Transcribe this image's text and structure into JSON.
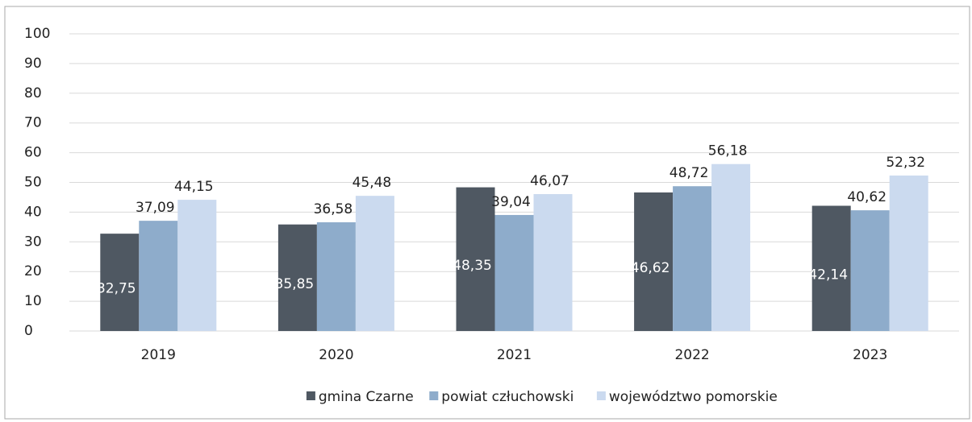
{
  "chart_data": {
    "type": "bar",
    "categories": [
      "2019",
      "2020",
      "2021",
      "2022",
      "2023"
    ],
    "series": [
      {
        "name": "gmina Czarne",
        "color": "#4f5862",
        "values": [
          32.75,
          35.85,
          48.35,
          46.62,
          42.14
        ],
        "value_labels": [
          "32,75",
          "35,85",
          "48,35",
          "46,62",
          "42,14"
        ]
      },
      {
        "name": "powiat człuchowski",
        "color": "#8eaccb",
        "values": [
          37.09,
          36.58,
          39.04,
          48.72,
          40.62
        ],
        "value_labels": [
          "37,09",
          "36,58",
          "39,04",
          "48,72",
          "40,62"
        ]
      },
      {
        "name": "województwo pomorskie",
        "color": "#cbdaef",
        "values": [
          44.15,
          45.48,
          46.07,
          56.18,
          52.32
        ],
        "value_labels": [
          "44,15",
          "45,48",
          "46,07",
          "56,18",
          "52,32"
        ]
      }
    ],
    "ylim": [
      0,
      100
    ],
    "yticks": [
      0,
      10,
      20,
      30,
      40,
      50,
      60,
      70,
      80,
      90,
      100
    ],
    "grid": true,
    "legend": "bottom"
  }
}
